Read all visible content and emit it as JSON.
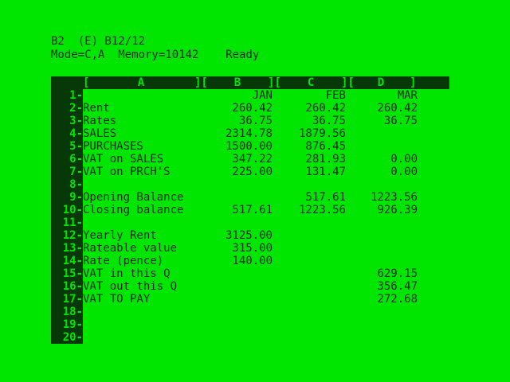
{
  "status": {
    "line1": "B2  (E) B12/12",
    "line2": "Mode=C,A  Memory=10142    Ready"
  },
  "columns": [
    {
      "id": "col-a",
      "letter": "A"
    },
    {
      "id": "col-b",
      "letter": "B"
    },
    {
      "id": "col-c",
      "letter": "C"
    },
    {
      "id": "col-d",
      "letter": "D"
    }
  ],
  "month_headers": {
    "b": "JAN",
    "c": "FEB",
    "d": "MAR"
  },
  "rows": [
    {
      "num": "1",
      "label": "",
      "b": "",
      "c": "",
      "d": ""
    },
    {
      "num": "2",
      "label": "Rent",
      "b": "260.42",
      "c": "260.42",
      "d": "260.42"
    },
    {
      "num": "3",
      "label": "Rates",
      "b": "36.75",
      "c": "36.75",
      "d": "36.75"
    },
    {
      "num": "4",
      "label": "SALES",
      "b": "2314.78",
      "c": "1879.56",
      "d": ""
    },
    {
      "num": "5",
      "label": "PURCHASES",
      "b": "1500.00",
      "c": "876.45",
      "d": ""
    },
    {
      "num": "6",
      "label": "VAT on SALES",
      "b": "347.22",
      "c": "281.93",
      "d": "0.00"
    },
    {
      "num": "7",
      "label": "VAT on PRCH'S",
      "b": "225.00",
      "c": "131.47",
      "d": "0.00"
    },
    {
      "num": "8",
      "label": "",
      "b": "",
      "c": "",
      "d": ""
    },
    {
      "num": "9",
      "label": "Opening Balance",
      "b": "",
      "c": "517.61",
      "d": "1223.56"
    },
    {
      "num": "10",
      "label": "Closing balance",
      "b": "517.61",
      "c": "1223.56",
      "d": "926.39"
    },
    {
      "num": "11",
      "label": "",
      "b": "",
      "c": "",
      "d": ""
    },
    {
      "num": "12",
      "label": "Yearly Rent",
      "b": "3125.00",
      "c": "",
      "d": ""
    },
    {
      "num": "13",
      "label": "Rateable value",
      "b": "315.00",
      "c": "",
      "d": ""
    },
    {
      "num": "14",
      "label": "Rate (pence)",
      "b": "140.00",
      "c": "",
      "d": ""
    },
    {
      "num": "15",
      "label": "VAT in this Q",
      "b": "",
      "c": "",
      "d": "629.15"
    },
    {
      "num": "16",
      "label": "VAT out this Q",
      "b": "",
      "c": "",
      "d": "356.47"
    },
    {
      "num": "17",
      "label": "VAT TO PAY",
      "b": "",
      "c": "",
      "d": "272.68"
    },
    {
      "num": "18",
      "label": "",
      "b": "",
      "c": "",
      "d": ""
    },
    {
      "num": "19",
      "label": "",
      "b": "",
      "c": "",
      "d": ""
    },
    {
      "num": "20",
      "label": "",
      "b": "",
      "c": "",
      "d": ""
    }
  ],
  "colors": {
    "screen": "#00e600",
    "header_bar": "#073807",
    "text": "#0b2b0b"
  }
}
